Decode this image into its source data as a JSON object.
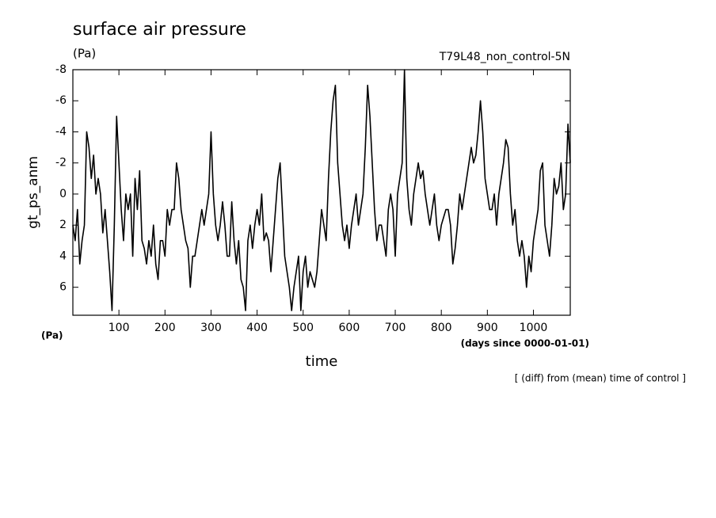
{
  "chart_data": {
    "type": "line",
    "title": "surface air pressure",
    "unit_label": "(Pa)",
    "run_label": "T79L48_non_control-5N",
    "y_label": "gt_ps_anm",
    "y_unit_label": "(Pa)",
    "x_label": "time",
    "x_unit_label": "(days since 0000-01-01)",
    "note": "[ (diff) from (mean) time of control ]",
    "color": "#000000",
    "y_inverted": true,
    "xlim": [
      0,
      1080
    ],
    "ylim": [
      -8,
      7.8
    ],
    "xticks": [
      100,
      200,
      300,
      400,
      500,
      600,
      700,
      800,
      900,
      1000
    ],
    "yticks": [
      -8,
      -6,
      -4,
      -2,
      0,
      2,
      4,
      6
    ],
    "x": [
      0,
      5,
      10,
      15,
      20,
      25,
      30,
      35,
      40,
      45,
      50,
      55,
      60,
      65,
      70,
      75,
      80,
      85,
      90,
      95,
      100,
      105,
      110,
      115,
      120,
      125,
      130,
      135,
      140,
      145,
      150,
      155,
      160,
      165,
      170,
      175,
      180,
      185,
      190,
      195,
      200,
      205,
      210,
      215,
      220,
      225,
      230,
      235,
      240,
      245,
      250,
      255,
      260,
      265,
      270,
      275,
      280,
      285,
      290,
      295,
      300,
      305,
      310,
      315,
      320,
      325,
      330,
      335,
      340,
      345,
      350,
      355,
      360,
      365,
      370,
      375,
      380,
      385,
      390,
      395,
      400,
      405,
      410,
      415,
      420,
      425,
      430,
      435,
      440,
      445,
      450,
      455,
      460,
      465,
      470,
      475,
      480,
      485,
      490,
      495,
      500,
      505,
      510,
      515,
      520,
      525,
      530,
      535,
      540,
      545,
      550,
      555,
      560,
      565,
      570,
      575,
      580,
      585,
      590,
      595,
      600,
      605,
      610,
      615,
      620,
      625,
      630,
      635,
      640,
      645,
      650,
      655,
      660,
      665,
      670,
      675,
      680,
      685,
      690,
      695,
      700,
      705,
      710,
      715,
      720,
      725,
      730,
      735,
      740,
      745,
      750,
      755,
      760,
      765,
      770,
      775,
      780,
      785,
      790,
      795,
      800,
      805,
      810,
      815,
      820,
      825,
      830,
      835,
      840,
      845,
      850,
      855,
      860,
      865,
      870,
      875,
      880,
      885,
      890,
      895,
      900,
      905,
      910,
      915,
      920,
      925,
      930,
      935,
      940,
      945,
      950,
      955,
      960,
      965,
      970,
      975,
      980,
      985,
      990,
      995,
      1000,
      1005,
      1010,
      1015,
      1020,
      1025,
      1030,
      1035,
      1040,
      1045,
      1050,
      1055,
      1060,
      1065,
      1070,
      1075,
      1080
    ],
    "values": [
      2,
      3,
      1,
      4.5,
      3,
      2,
      -4,
      -3,
      -1,
      -2.5,
      0,
      -1,
      0,
      2.5,
      1,
      3,
      5,
      7.5,
      2,
      -5,
      -2,
      1,
      3,
      0,
      1,
      0,
      4,
      -1,
      1,
      -1.5,
      3,
      3.5,
      4.5,
      3,
      4,
      2,
      4.5,
      5.5,
      3,
      3,
      4,
      1,
      2,
      1,
      1,
      -2,
      -1,
      1,
      2,
      3,
      3.5,
      6,
      4,
      4,
      3,
      2,
      1,
      2,
      1,
      0,
      -4,
      0,
      2,
      3,
      2,
      0.5,
      2,
      4,
      4,
      0.5,
      3,
      4.5,
      3,
      5.5,
      6,
      7.5,
      3,
      2,
      3.5,
      2,
      1,
      2,
      0,
      3,
      2.5,
      3,
      5,
      3,
      1,
      -1,
      -2,
      1,
      4,
      5,
      6,
      7.5,
      6,
      5,
      4,
      7.5,
      5,
      4,
      6,
      5,
      5.5,
      6,
      5,
      3,
      1,
      2,
      3,
      -1,
      -4,
      -6,
      -7,
      -2,
      0,
      2,
      3,
      2,
      3.5,
      2,
      1,
      0,
      2,
      1,
      0,
      -3,
      -7,
      -5,
      -2,
      1,
      3,
      2,
      2,
      3,
      4,
      1,
      0,
      1,
      4,
      0,
      -1,
      -2,
      -8,
      -1,
      1,
      2,
      0,
      -1,
      -2,
      -1,
      -1.5,
      0,
      1,
      2,
      1,
      0,
      2,
      3,
      2,
      1.5,
      1,
      1,
      2,
      4.5,
      3.5,
      2,
      0,
      1,
      0,
      -1,
      -2,
      -3,
      -2,
      -2.5,
      -4,
      -6,
      -4,
      -1,
      0,
      1,
      1,
      0,
      2,
      0,
      -1,
      -2,
      -3.5,
      -3,
      0,
      2,
      1,
      3,
      4,
      3,
      4,
      6,
      4,
      5,
      3,
      2,
      1,
      -1.5,
      -2,
      2,
      3,
      4,
      2,
      -1,
      0,
      -0.5,
      -2,
      1,
      0,
      -4.5,
      -2
    ]
  }
}
